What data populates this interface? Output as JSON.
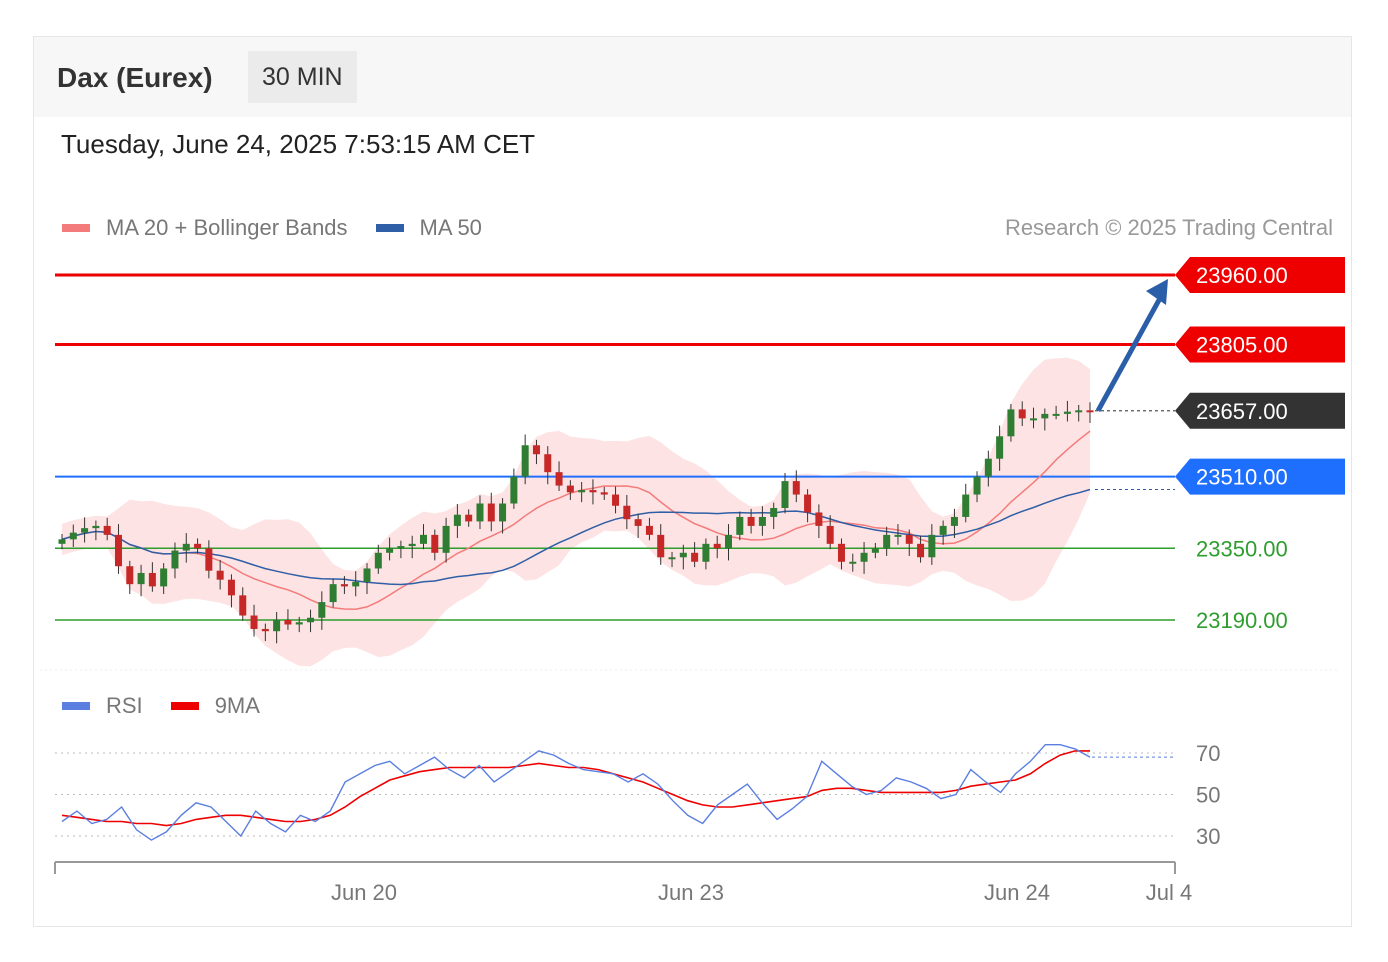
{
  "header": {
    "instrument": "Dax (Eurex)",
    "timeframe": "30 MIN",
    "datetime": "Tuesday, June 24, 2025 7:53:15 AM CET",
    "copyright": "Research © 2025 Trading Central"
  },
  "legend": {
    "main": [
      {
        "label": "MA 20 + Bollinger Bands",
        "color": "#f47b7b"
      },
      {
        "label": "MA 50",
        "color": "#2f5fa6"
      }
    ],
    "rsi": [
      {
        "label": "RSI",
        "color": "#5b7fe0"
      },
      {
        "label": "9MA",
        "color": "#ee0000"
      }
    ]
  },
  "colors": {
    "resistance": "#ee0000",
    "pivot": "#1f6fff",
    "support": "#2e9e2e",
    "current": "#333333",
    "arrow": "#2a5ea8",
    "band_fill": "#fde2e2",
    "candle_up": "#2e7d32",
    "candle_down": "#c62828"
  },
  "chart_data": {
    "type": "candlestick",
    "y_range": [
      23060,
      23990
    ],
    "x_labels": [
      "Jun 20",
      "Jun 23",
      "Jun 24",
      "Jul 4"
    ],
    "levels": [
      {
        "value": 23960.0,
        "label": "23960.00",
        "kind": "resistance"
      },
      {
        "value": 23805.0,
        "label": "23805.00",
        "kind": "resistance"
      },
      {
        "value": 23657.0,
        "label": "23657.00",
        "kind": "current"
      },
      {
        "value": 23510.0,
        "label": "23510.00",
        "kind": "pivot"
      },
      {
        "value": 23350.0,
        "label": "23350.00",
        "kind": "support"
      },
      {
        "value": 23190.0,
        "label": "23190.00",
        "kind": "support"
      }
    ],
    "closes": [
      23370,
      23385,
      23395,
      23400,
      23380,
      23310,
      23270,
      23295,
      23265,
      23305,
      23345,
      23360,
      23350,
      23300,
      23280,
      23245,
      23200,
      23170,
      23165,
      23190,
      23180,
      23185,
      23195,
      23230,
      23270,
      23265,
      23275,
      23305,
      23340,
      23350,
      23355,
      23360,
      23380,
      23340,
      23400,
      23425,
      23410,
      23450,
      23410,
      23450,
      23510,
      23580,
      23560,
      23520,
      23490,
      23475,
      23480,
      23475,
      23470,
      23445,
      23415,
      23400,
      23380,
      23330,
      23330,
      23340,
      23320,
      23360,
      23350,
      23380,
      23420,
      23400,
      23420,
      23440,
      23500,
      23470,
      23430,
      23400,
      23360,
      23320,
      23320,
      23340,
      23350,
      23380,
      23380,
      23360,
      23330,
      23380,
      23400,
      23420,
      23470,
      23510,
      23550,
      23600,
      23660,
      23640,
      23640,
      23650,
      23650,
      23655,
      23658,
      23657
    ],
    "rsi": {
      "levels": [
        70,
        50,
        30
      ],
      "rsi_values": [
        37,
        42,
        36,
        38,
        44,
        33,
        28,
        32,
        40,
        46,
        44,
        37,
        30,
        42,
        36,
        32,
        40,
        37,
        42,
        56,
        60,
        64,
        66,
        60,
        64,
        68,
        62,
        58,
        64,
        56,
        61,
        66,
        71,
        69,
        65,
        62,
        61,
        60,
        56,
        60,
        55,
        47,
        40,
        36,
        45,
        50,
        55,
        46,
        38,
        43,
        49,
        66,
        60,
        54,
        50,
        52,
        58,
        56,
        53,
        48,
        50,
        62,
        56,
        51,
        60,
        66,
        74,
        74,
        72,
        68
      ],
      "ma9_values": [
        40,
        39,
        38,
        37,
        37,
        36,
        36,
        35,
        36,
        38,
        39,
        40,
        40,
        39,
        38,
        37,
        37,
        38,
        40,
        44,
        49,
        53,
        57,
        59,
        61,
        62,
        63,
        63,
        63,
        63,
        63,
        64,
        65,
        64,
        63,
        63,
        62,
        60,
        58,
        56,
        53,
        50,
        47,
        45,
        44,
        44,
        45,
        46,
        47,
        48,
        49,
        52,
        53,
        53,
        52,
        51,
        51,
        51,
        51,
        51,
        52,
        54,
        55,
        56,
        57,
        60,
        65,
        69,
        71,
        71
      ]
    }
  }
}
